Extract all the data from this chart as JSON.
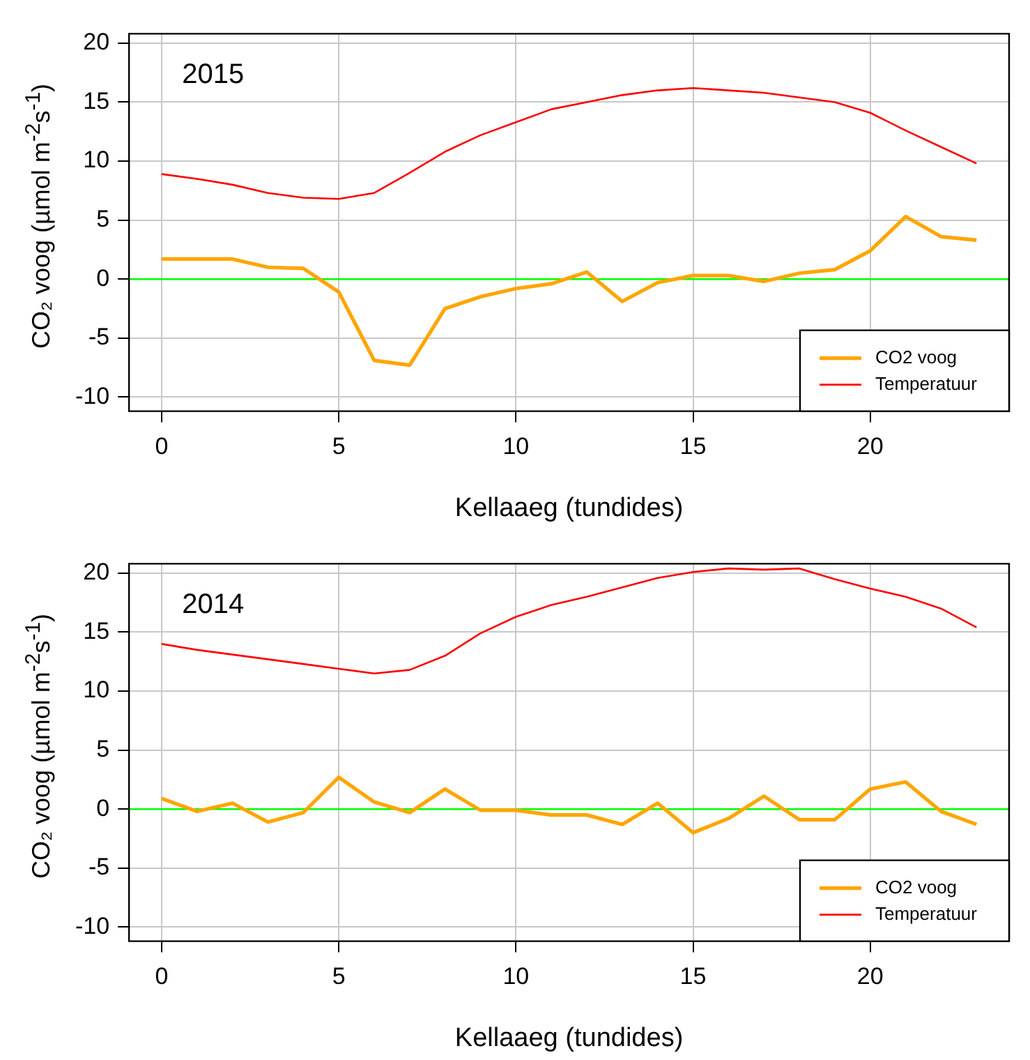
{
  "chart_data": [
    {
      "type": "line",
      "title": "2015",
      "xlabel": "Kellaaeg (tundides)",
      "ylabel": "CO₂ voog (µmol m$^{-2}$s$^{-1}$)",
      "x": [
        0,
        1,
        2,
        3,
        4,
        5,
        6,
        7,
        8,
        9,
        10,
        11,
        12,
        13,
        14,
        15,
        16,
        17,
        18,
        19,
        20,
        21,
        22,
        23
      ],
      "series": [
        {
          "name": "CO2 voog",
          "color": "#ffa500",
          "values": [
            1.7,
            1.7,
            1.7,
            1.0,
            0.9,
            -1.1,
            -6.9,
            -7.3,
            -2.5,
            -1.5,
            -0.8,
            -0.4,
            0.6,
            -1.9,
            -0.3,
            0.3,
            0.3,
            -0.2,
            0.5,
            0.8,
            2.4,
            5.3,
            3.6,
            3.3
          ]
        },
        {
          "name": "Temperatuur",
          "color": "#ff0000",
          "values": [
            8.9,
            8.5,
            8.0,
            7.3,
            6.9,
            6.8,
            7.3,
            9.0,
            10.8,
            12.2,
            13.3,
            14.4,
            15.0,
            15.6,
            16.0,
            16.2,
            16.0,
            15.8,
            15.4,
            15.0,
            14.1,
            12.6,
            11.2,
            9.8
          ]
        }
      ],
      "xlim": [
        -0.92,
        23.92
      ],
      "xticks": [
        0,
        5,
        10,
        15,
        20
      ],
      "ylim": [
        -11.2,
        20.8
      ],
      "yticks": [
        -10,
        -5,
        0,
        5,
        10,
        15,
        20
      ],
      "ref_lines": [
        {
          "axis": "y",
          "value": 0,
          "color": "#00ff00"
        }
      ],
      "grid": true,
      "legend": "bottom right",
      "line_style": "solid",
      "marker": "none"
    },
    {
      "type": "line",
      "title": "2014",
      "xlabel": "Kellaaeg (tundides)",
      "ylabel": "CO₂ voog (µmol m$^{-2}$s$^{-1}$)",
      "x": [
        0,
        1,
        2,
        3,
        4,
        5,
        6,
        7,
        8,
        9,
        10,
        11,
        12,
        13,
        14,
        15,
        16,
        17,
        18,
        19,
        20,
        21,
        22,
        23
      ],
      "series": [
        {
          "name": "CO2 voog",
          "color": "#ffa500",
          "values": [
            0.9,
            -0.2,
            0.5,
            -1.1,
            -0.3,
            2.7,
            0.6,
            -0.3,
            1.7,
            -0.1,
            -0.1,
            -0.5,
            -0.5,
            -1.3,
            0.5,
            -2.0,
            -0.8,
            1.1,
            -0.9,
            -0.9,
            1.7,
            2.3,
            -0.2,
            -1.3
          ]
        },
        {
          "name": "Temperatuur",
          "color": "#ff0000",
          "values": [
            14.0,
            13.5,
            13.1,
            12.7,
            12.3,
            11.9,
            11.5,
            11.8,
            13.0,
            14.9,
            16.3,
            17.3,
            18.0,
            18.8,
            19.6,
            20.1,
            20.4,
            20.3,
            20.4,
            19.5,
            18.7,
            18.0,
            17.0,
            15.4
          ]
        }
      ],
      "xlim": [
        -0.92,
        23.92
      ],
      "xticks": [
        0,
        5,
        10,
        15,
        20
      ],
      "ylim": [
        -11.2,
        20.8
      ],
      "yticks": [
        -10,
        -5,
        0,
        5,
        10,
        15,
        20
      ],
      "ref_lines": [
        {
          "axis": "y",
          "value": 0,
          "color": "#00ff00"
        }
      ],
      "grid": true,
      "legend": "bottom right",
      "line_style": "solid",
      "marker": "none"
    }
  ]
}
